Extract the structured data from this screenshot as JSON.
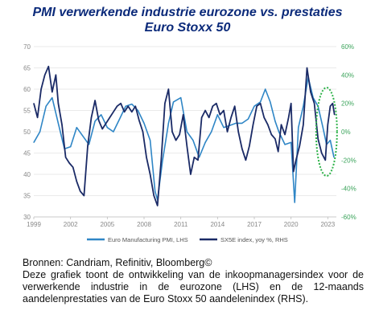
{
  "title_line1": "PMI verwerkende industrie eurozone vs. prestaties",
  "title_line2": "Euro Stoxx 50",
  "caption": {
    "sources": "Bronnen: Candriam, Refinitiv, Bloomberg©",
    "description": "Deze grafiek toont de ontwikkeling van de inkoopmanagersindex voor de verwerkende industrie in de eurozone (LHS) en de 12-maands aandelenprestaties van de Euro Stoxx 50 aandelenindex (RHS)."
  },
  "chart_data": {
    "type": "line",
    "xlim": [
      1999,
      2023.7
    ],
    "x_ticks": [
      "1999",
      "2002",
      "2005",
      "2008",
      "2011",
      "2014",
      "2017",
      "2020",
      "2023"
    ],
    "y_left": {
      "ylim": [
        30,
        70
      ],
      "ticks": [
        "70",
        "65",
        "60",
        "55",
        "50",
        "45",
        "40",
        "35",
        "30"
      ]
    },
    "y_right": {
      "ylim": [
        -60,
        60
      ],
      "ticks": [
        "60%",
        "40%",
        "20%",
        "0%",
        "-20%",
        "-40%",
        "-60%"
      ],
      "color": "#3aa35a"
    },
    "grid": "horizontal",
    "legend_position": "bottom",
    "annotation": "dotted-green-ellipse-around-2022-2023",
    "series": [
      {
        "name": "Euro Manufacturing PMI, LHS",
        "axis": "left",
        "color": "#2f86c6",
        "points": [
          [
            1999.0,
            47.5
          ],
          [
            1999.5,
            50
          ],
          [
            2000.0,
            56
          ],
          [
            2000.5,
            58
          ],
          [
            2001.0,
            52
          ],
          [
            2001.5,
            46
          ],
          [
            2002.0,
            46.5
          ],
          [
            2002.5,
            51
          ],
          [
            2003.0,
            49
          ],
          [
            2003.5,
            47
          ],
          [
            2004.0,
            52.5
          ],
          [
            2004.5,
            54
          ],
          [
            2005.0,
            51
          ],
          [
            2005.5,
            50
          ],
          [
            2006.0,
            53
          ],
          [
            2006.5,
            56
          ],
          [
            2007.0,
            56.5
          ],
          [
            2007.5,
            55
          ],
          [
            2008.0,
            52
          ],
          [
            2008.5,
            48
          ],
          [
            2008.9,
            36
          ],
          [
            2009.1,
            34
          ],
          [
            2009.5,
            43
          ],
          [
            2010.0,
            52
          ],
          [
            2010.4,
            57
          ],
          [
            2011.0,
            58
          ],
          [
            2011.5,
            50
          ],
          [
            2012.0,
            48
          ],
          [
            2012.5,
            44
          ],
          [
            2013.0,
            47.5
          ],
          [
            2013.5,
            50
          ],
          [
            2014.0,
            54
          ],
          [
            2014.5,
            51
          ],
          [
            2015.0,
            51.5
          ],
          [
            2015.5,
            52
          ],
          [
            2016.0,
            52
          ],
          [
            2016.5,
            53
          ],
          [
            2017.0,
            56
          ],
          [
            2017.5,
            57
          ],
          [
            2017.9,
            60
          ],
          [
            2018.3,
            57
          ],
          [
            2018.7,
            52.5
          ],
          [
            2019.0,
            50
          ],
          [
            2019.5,
            47
          ],
          [
            2020.0,
            47.5
          ],
          [
            2020.3,
            33.4
          ],
          [
            2020.6,
            51
          ],
          [
            2021.0,
            56
          ],
          [
            2021.4,
            62.8
          ],
          [
            2021.8,
            58
          ],
          [
            2022.2,
            56
          ],
          [
            2022.6,
            51
          ],
          [
            2022.9,
            47
          ],
          [
            2023.2,
            48
          ],
          [
            2023.5,
            44
          ]
        ]
      },
      {
        "name": "SX5E index, yoy %, RHS",
        "axis": "right",
        "color": "#1a2a66",
        "points": [
          [
            1999.0,
            20
          ],
          [
            1999.3,
            10
          ],
          [
            1999.6,
            30
          ],
          [
            1999.9,
            40
          ],
          [
            2000.2,
            46
          ],
          [
            2000.5,
            28
          ],
          [
            2000.8,
            40
          ],
          [
            2001.0,
            20
          ],
          [
            2001.3,
            5
          ],
          [
            2001.6,
            -18
          ],
          [
            2001.9,
            -22
          ],
          [
            2002.2,
            -25
          ],
          [
            2002.5,
            -35
          ],
          [
            2002.8,
            -42
          ],
          [
            2003.1,
            -45
          ],
          [
            2003.4,
            -10
          ],
          [
            2003.7,
            10
          ],
          [
            2004.0,
            22
          ],
          [
            2004.3,
            8
          ],
          [
            2004.6,
            2
          ],
          [
            2004.9,
            6
          ],
          [
            2005.2,
            10
          ],
          [
            2005.5,
            14
          ],
          [
            2005.8,
            18
          ],
          [
            2006.1,
            20
          ],
          [
            2006.4,
            14
          ],
          [
            2006.7,
            18
          ],
          [
            2007.0,
            14
          ],
          [
            2007.3,
            18
          ],
          [
            2007.6,
            8
          ],
          [
            2007.9,
            0
          ],
          [
            2008.2,
            -18
          ],
          [
            2008.5,
            -30
          ],
          [
            2008.8,
            -45
          ],
          [
            2009.1,
            -52
          ],
          [
            2009.4,
            -20
          ],
          [
            2009.7,
            20
          ],
          [
            2010.0,
            30
          ],
          [
            2010.3,
            0
          ],
          [
            2010.6,
            -6
          ],
          [
            2010.9,
            -2
          ],
          [
            2011.2,
            12
          ],
          [
            2011.5,
            -10
          ],
          [
            2011.8,
            -30
          ],
          [
            2012.1,
            -18
          ],
          [
            2012.4,
            -20
          ],
          [
            2012.7,
            10
          ],
          [
            2013.0,
            15
          ],
          [
            2013.3,
            10
          ],
          [
            2013.6,
            18
          ],
          [
            2013.9,
            20
          ],
          [
            2014.2,
            12
          ],
          [
            2014.5,
            15
          ],
          [
            2014.8,
            0
          ],
          [
            2015.1,
            10
          ],
          [
            2015.4,
            18
          ],
          [
            2015.7,
            0
          ],
          [
            2016.0,
            -12
          ],
          [
            2016.3,
            -20
          ],
          [
            2016.6,
            -10
          ],
          [
            2016.9,
            5
          ],
          [
            2017.2,
            18
          ],
          [
            2017.5,
            20
          ],
          [
            2017.8,
            10
          ],
          [
            2018.1,
            5
          ],
          [
            2018.4,
            -2
          ],
          [
            2018.7,
            -5
          ],
          [
            2018.95,
            -14
          ],
          [
            2019.2,
            5
          ],
          [
            2019.5,
            -2
          ],
          [
            2019.8,
            10
          ],
          [
            2020.0,
            20
          ],
          [
            2020.2,
            -28
          ],
          [
            2020.4,
            -20
          ],
          [
            2020.7,
            -10
          ],
          [
            2021.0,
            5
          ],
          [
            2021.3,
            45
          ],
          [
            2021.6,
            28
          ],
          [
            2021.9,
            20
          ],
          [
            2022.2,
            -5
          ],
          [
            2022.5,
            -15
          ],
          [
            2022.8,
            -20
          ],
          [
            2023.0,
            5
          ],
          [
            2023.2,
            18
          ],
          [
            2023.4,
            20
          ],
          [
            2023.55,
            12
          ]
        ]
      }
    ]
  }
}
